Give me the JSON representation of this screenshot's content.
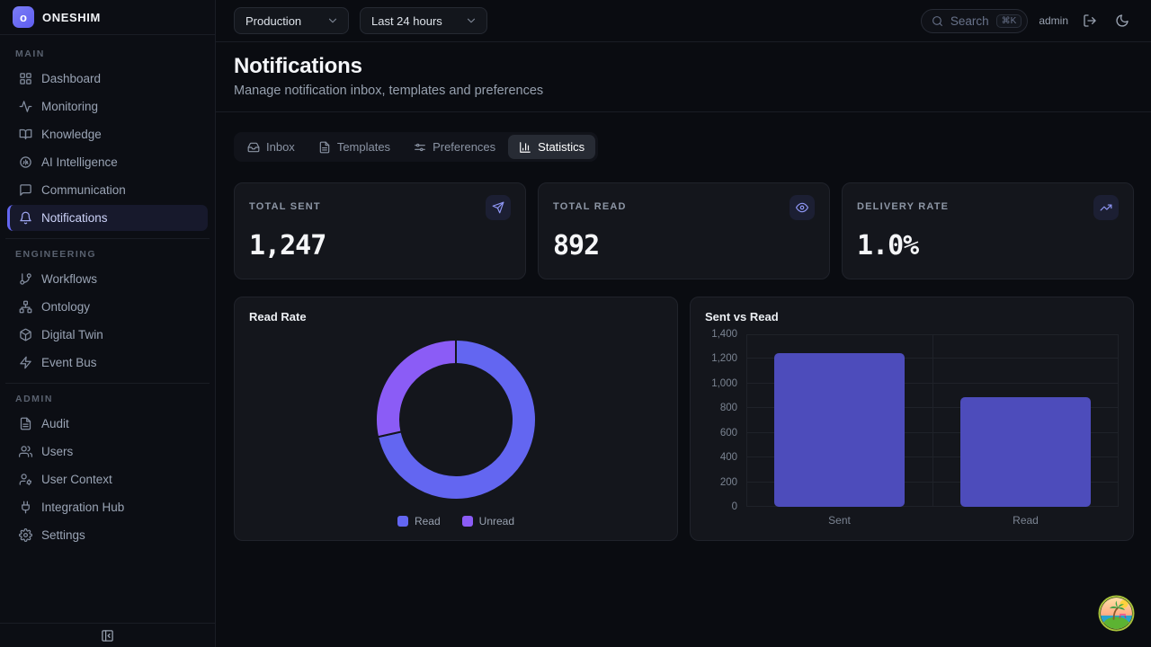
{
  "brand": {
    "name": "ONESHIM",
    "logo_letter": "o"
  },
  "sidebar": {
    "sections": [
      {
        "label": "MAIN",
        "items": [
          {
            "label": "Dashboard",
            "icon": "grid-icon"
          },
          {
            "label": "Monitoring",
            "icon": "activity-icon"
          },
          {
            "label": "Knowledge",
            "icon": "book-open-icon"
          },
          {
            "label": "AI Intelligence",
            "icon": "brain-icon"
          },
          {
            "label": "Communication",
            "icon": "message-icon"
          },
          {
            "label": "Notifications",
            "icon": "bell-icon",
            "active": true
          }
        ]
      },
      {
        "label": "ENGINEERING",
        "items": [
          {
            "label": "Workflows",
            "icon": "git-branch-icon"
          },
          {
            "label": "Ontology",
            "icon": "network-icon"
          },
          {
            "label": "Digital Twin",
            "icon": "cube-icon"
          },
          {
            "label": "Event Bus",
            "icon": "zap-icon"
          }
        ]
      },
      {
        "label": "ADMIN",
        "items": [
          {
            "label": "Audit",
            "icon": "file-text-icon"
          },
          {
            "label": "Users",
            "icon": "users-icon"
          },
          {
            "label": "User Context",
            "icon": "user-cog-icon"
          },
          {
            "label": "Integration Hub",
            "icon": "plug-icon"
          },
          {
            "label": "Settings",
            "icon": "gear-icon"
          }
        ]
      }
    ]
  },
  "topbar": {
    "environment": "Production",
    "time_range": "Last 24 hours",
    "search_placeholder": "Search",
    "search_shortcut": "⌘K",
    "user": "admin"
  },
  "page": {
    "title": "Notifications",
    "subtitle": "Manage notification inbox, templates and preferences"
  },
  "tabs": [
    {
      "label": "Inbox",
      "icon": "inbox-icon"
    },
    {
      "label": "Templates",
      "icon": "file-text-icon"
    },
    {
      "label": "Preferences",
      "icon": "sliders-icon"
    },
    {
      "label": "Statistics",
      "icon": "bar-chart-icon",
      "active": true
    }
  ],
  "stats": [
    {
      "label": "TOTAL SENT",
      "value": "1,247",
      "icon": "send-icon"
    },
    {
      "label": "TOTAL READ",
      "value": "892",
      "icon": "eye-icon"
    },
    {
      "label": "DELIVERY RATE",
      "value": "1.0%",
      "icon": "trending-up-icon"
    }
  ],
  "chart_data": [
    {
      "type": "pie",
      "donut": true,
      "title": "Read Rate",
      "labels": [
        "Read",
        "Unread"
      ],
      "values": [
        892,
        355
      ],
      "colors": [
        "#6366f1",
        "#8b5cf6"
      ],
      "legend_position": "bottom"
    },
    {
      "type": "bar",
      "title": "Sent vs Read",
      "categories": [
        "Sent",
        "Read"
      ],
      "values": [
        1247,
        892
      ],
      "ylim": [
        0,
        1400
      ],
      "ytick_step": 200,
      "ytick_labels": [
        "0",
        "200",
        "400",
        "600",
        "800",
        "1,000",
        "1,200",
        "1,400"
      ],
      "bar_color": "#4d4cbb",
      "grid": true,
      "legend_position": "none"
    }
  ],
  "colors": {
    "accent": "#6366f1",
    "purple": "#8b5cf6",
    "background": "#0a0c11",
    "card": "#14161c",
    "border": "#20232b"
  }
}
